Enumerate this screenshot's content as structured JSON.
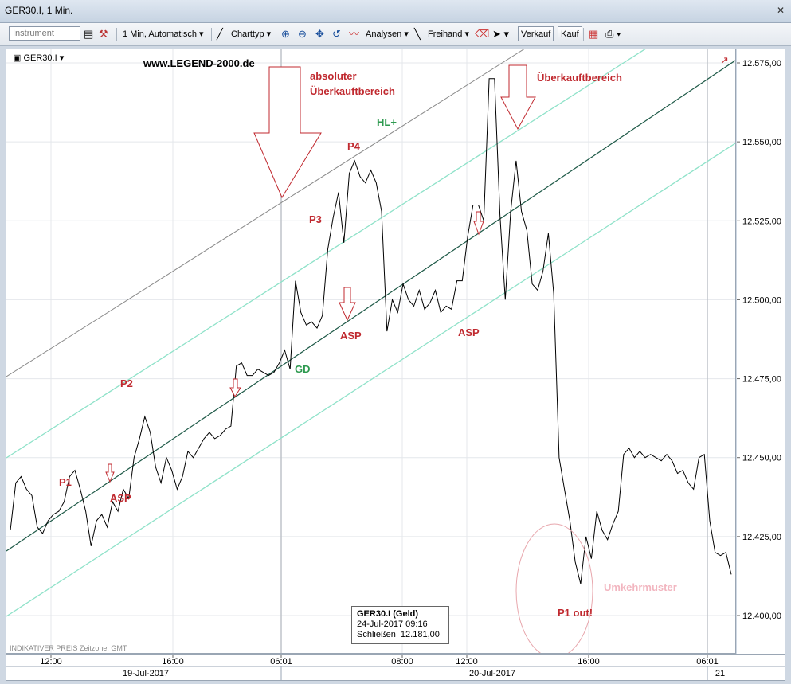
{
  "window": {
    "title": "GER30.I, 1 Min.",
    "close_label": "✕"
  },
  "toolbar": {
    "instrument_placeholder": "Instrument",
    "period_label": "1 Min,",
    "scale_label": "Automatisch",
    "charttype_label": "Charttyp",
    "analysen_label": "Analysen",
    "freihand_label": "Freihand",
    "verkauf_label": "Verkauf",
    "kauf_label": "Kauf"
  },
  "chart_header": {
    "symbol": "GER30.I",
    "watermark": "www.LEGEND-2000.de"
  },
  "footer": {
    "left_note": "INDIKATIVER PREIS  Zeitzone: GMT"
  },
  "tooltip": {
    "title": "GER30.I (Geld)",
    "date": "24-Jul-2017 09:16",
    "close_label": "Schließen",
    "close_value": "12.181,00"
  },
  "annotations": {
    "absolute_1": "absoluter",
    "absolute_2": "Überkauftbereich",
    "overbought": "Überkauftbereich",
    "hl": "HL+",
    "gd": "GD",
    "p1": "P1",
    "p2": "P2",
    "p3": "P3",
    "p4": "P4",
    "asp1": "ASP",
    "asp2": "ASP",
    "asp3": "ASP",
    "p1out": "P1 out!",
    "umkehr": "Umkehrmuster"
  },
  "chart_data": {
    "type": "line",
    "title": "GER30.I, 1 Min.",
    "y_ticks": [
      "12.400,00",
      "12.425,00",
      "12.450,00",
      "12.475,00",
      "12.500,00",
      "12.525,00",
      "12.550,00",
      "12.575,00"
    ],
    "x_ticks": [
      "12:00",
      "16:00",
      "06:01",
      "08:00",
      "12:00",
      "16:00",
      "06:01"
    ],
    "date_labels": [
      "19-Jul-2017",
      "20-Jul-2017",
      "21"
    ],
    "ylim": [
      12385,
      12580
    ],
    "series": [
      {
        "values": [
          12427,
          12442,
          12444,
          12440,
          12438,
          12428,
          12426,
          12430,
          12432,
          12433,
          12436,
          12444,
          12446,
          12440,
          12433,
          12422,
          12430,
          12432,
          12428,
          12436,
          12433,
          12440,
          12437,
          12450,
          12456,
          12463,
          12458,
          12447,
          12442,
          12450,
          12446,
          12440,
          12444,
          12452,
          12450,
          12453,
          12456,
          12458,
          12456,
          12457,
          12459,
          12460,
          12479,
          12480,
          12476,
          12476,
          12478,
          12477,
          12476,
          12477,
          12480,
          12484,
          12478,
          12506,
          12496,
          12492,
          12493,
          12491,
          12495,
          12516,
          12526,
          12534,
          12518,
          12540,
          12544,
          12539,
          12537,
          12541,
          12537,
          12528,
          12490,
          12500,
          12496,
          12505,
          12500,
          12498,
          12503,
          12497,
          12499,
          12503,
          12496,
          12498,
          12497,
          12506,
          12506,
          12520,
          12530,
          12530,
          12525,
          12570,
          12570,
          12527,
          12500,
          12528,
          12544,
          12528,
          12522,
          12505,
          12503,
          12509,
          12521,
          12502,
          12450,
          12440,
          12430,
          12417,
          12410,
          12425,
          12418,
          12433,
          12427,
          12424,
          12429,
          12433,
          12451,
          12453,
          12450,
          12452,
          12450,
          12451,
          12450,
          12449,
          12451,
          12449,
          12445,
          12446,
          12442,
          12440,
          12450,
          12451,
          12430,
          12420,
          12419,
          12420,
          12413
        ]
      }
    ]
  }
}
